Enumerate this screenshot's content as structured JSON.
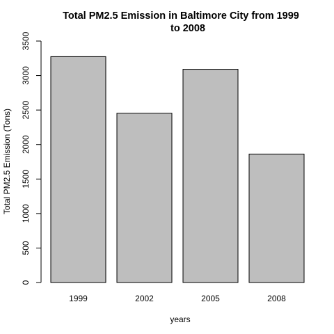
{
  "chart_data": {
    "type": "bar",
    "title_lines": [
      "Total PM2.5 Emission in Baltimore City from 1999",
      "to 2008"
    ],
    "xlabel": "years",
    "ylabel": "Total PM2.5 Emission (Tons)",
    "categories": [
      "1999",
      "2002",
      "2005",
      "2008"
    ],
    "values": [
      3274,
      2454,
      3091,
      1862
    ],
    "ylim": [
      0,
      3500
    ],
    "yticks": [
      0,
      500,
      1000,
      1500,
      2000,
      2500,
      3000,
      3500
    ],
    "grid": false,
    "legend": "none",
    "bar_fill": "#bebebe",
    "bar_stroke": "#000000"
  }
}
